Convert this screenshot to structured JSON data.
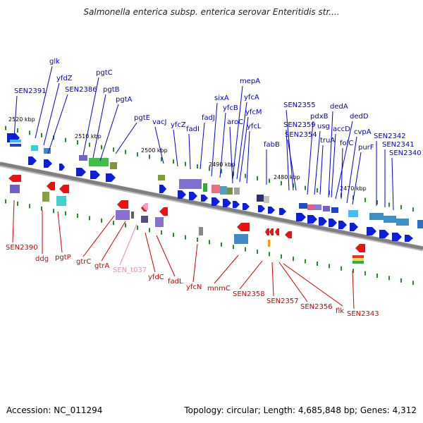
{
  "header": {
    "title": "Salmonella enterica subsp. enterica serovar Enteritidis str...."
  },
  "footer": {
    "accession": "Accession: NC_011294",
    "summary": "Topology: circular; Length: 4,685,848 bp; Genes: 4,312"
  },
  "colors": {
    "forward_label": "#0000cc",
    "reverse_label": "#cc0000",
    "rna_label": "#ee88bb",
    "backbone": "#808080",
    "tick": "#2a8a2a"
  },
  "ruler": {
    "ticks": [
      {
        "label": "2520 kbp"
      },
      {
        "label": "2510 kbp"
      },
      {
        "label": "2500 kbp"
      },
      {
        "label": "2490 kbp"
      },
      {
        "label": "2480 kbp"
      },
      {
        "label": "2470 kbp"
      }
    ]
  },
  "genes_top": [
    {
      "label": "SEN2391"
    },
    {
      "label": "glk"
    },
    {
      "label": "yfdZ"
    },
    {
      "label": "SEN2386"
    },
    {
      "label": "pgtC"
    },
    {
      "label": "pgtB"
    },
    {
      "label": "pgtA"
    },
    {
      "label": "pgtE"
    },
    {
      "label": "vacJ"
    },
    {
      "label": "yfcZ"
    },
    {
      "label": "fadI"
    },
    {
      "label": "fadJ"
    },
    {
      "label": "sixA"
    },
    {
      "label": "yfcB"
    },
    {
      "label": "mepA"
    },
    {
      "label": "yfcA"
    },
    {
      "label": "aroC"
    },
    {
      "label": "yfcM"
    },
    {
      "label": "yfcL"
    },
    {
      "label": "SEN2359"
    },
    {
      "label": "fabB"
    },
    {
      "label": "SEN2355"
    },
    {
      "label": "SEN2354"
    },
    {
      "label": "pdxB"
    },
    {
      "label": "usg"
    },
    {
      "label": "truA"
    },
    {
      "label": "dedA"
    },
    {
      "label": "accD"
    },
    {
      "label": "dedD"
    },
    {
      "label": "folC"
    },
    {
      "label": "cvpA"
    },
    {
      "label": "purF"
    },
    {
      "label": "SEN2342"
    },
    {
      "label": "SEN2341"
    },
    {
      "label": "SEN2340"
    }
  ],
  "genes_bottom": [
    {
      "label": "SEN2390",
      "type": "cds"
    },
    {
      "label": "ddg",
      "type": "cds"
    },
    {
      "label": "pgtP",
      "type": "cds"
    },
    {
      "label": "gtrC",
      "type": "cds"
    },
    {
      "label": "gtrA",
      "type": "cds"
    },
    {
      "label": "SEN_t037",
      "type": "rna"
    },
    {
      "label": "yfdC",
      "type": "cds"
    },
    {
      "label": "fadL",
      "type": "cds"
    },
    {
      "label": "yfcN",
      "type": "cds"
    },
    {
      "label": "mnmC",
      "type": "cds"
    },
    {
      "label": "SEN2358",
      "type": "cds"
    },
    {
      "label": "SEN2357",
      "type": "cds"
    },
    {
      "label": "SEN2356",
      "type": "cds"
    },
    {
      "label": "flk",
      "type": "cds"
    },
    {
      "label": "SEN2343",
      "type": "cds"
    }
  ]
}
